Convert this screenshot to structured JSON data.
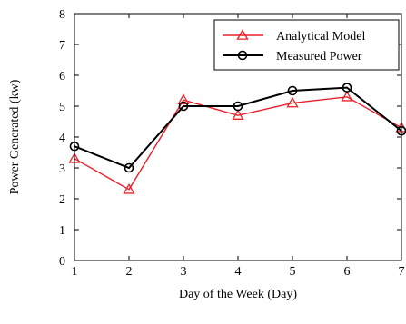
{
  "chart_data": {
    "type": "line",
    "xlabel": "Day of the Week (Day)",
    "ylabel": "Power Generated (kw)",
    "x": [
      1,
      2,
      3,
      4,
      5,
      6,
      7
    ],
    "xlim": [
      1,
      7
    ],
    "ylim": [
      0,
      8
    ],
    "xticks": [
      "1",
      "2",
      "3",
      "4",
      "5",
      "6",
      "7"
    ],
    "yticks": [
      "0",
      "1",
      "2",
      "3",
      "4",
      "5",
      "6",
      "7",
      "8"
    ],
    "grid": false,
    "legend_position": "top-right",
    "series": [
      {
        "name": "Analytical Model",
        "color": "#e8202a",
        "marker": "triangle",
        "values": [
          3.3,
          2.3,
          5.2,
          4.7,
          5.1,
          5.3,
          4.3
        ]
      },
      {
        "name": "Measured Power",
        "color": "#000000",
        "marker": "circle",
        "values": [
          3.7,
          3.0,
          5.0,
          5.0,
          5.5,
          5.6,
          4.2
        ]
      }
    ]
  }
}
